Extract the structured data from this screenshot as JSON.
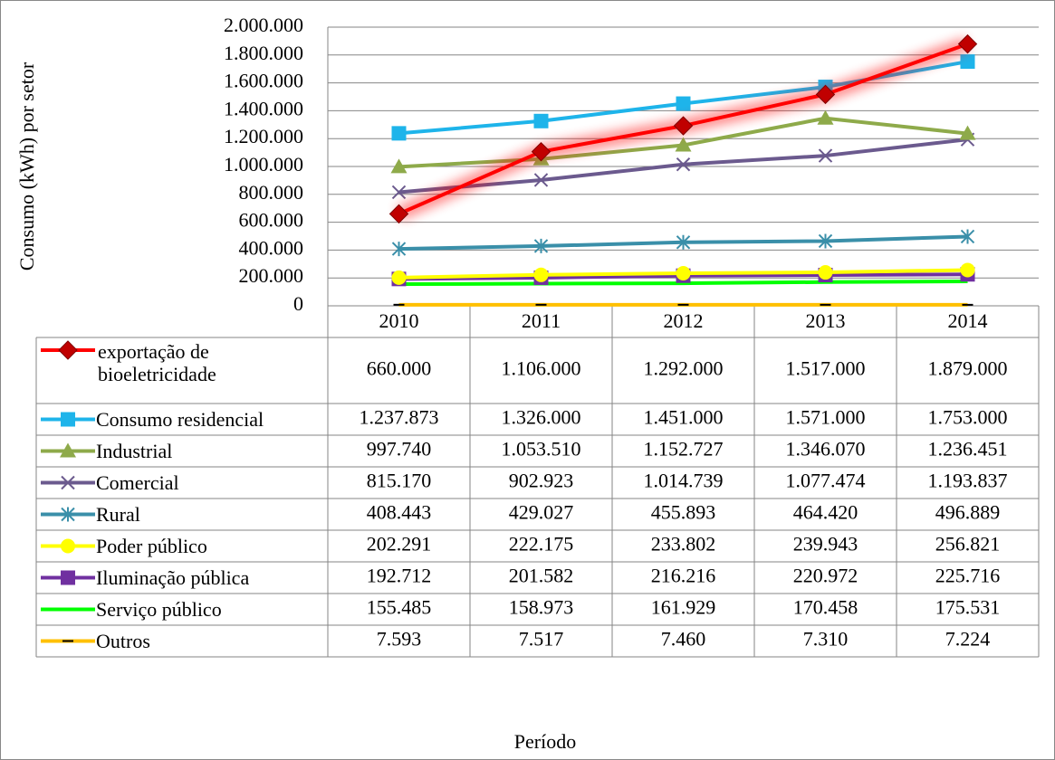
{
  "chart_data": {
    "type": "line",
    "y_axis_label": "Consumo (kWh) por  setor",
    "x_axis_label": "Período",
    "categories": [
      "2010",
      "2011",
      "2012",
      "2013",
      "2014"
    ],
    "ylim": [
      0,
      2000000
    ],
    "yticks": [
      0,
      {
        "value": 200000,
        "label": "200.000"
      },
      {
        "value": 400000,
        "label": "400.000"
      },
      {
        "value": 600000,
        "label": "600.000"
      },
      {
        "value": 800000,
        "label": "800.000"
      },
      {
        "value": 1000000,
        "label": "1.000.000"
      },
      {
        "value": 1200000,
        "label": "1.200.000"
      },
      {
        "value": 1400000,
        "label": "1.400.000"
      },
      {
        "value": 1600000,
        "label": "1.600.000"
      },
      {
        "value": 1800000,
        "label": "1.800.000"
      },
      {
        "value": 2000000,
        "label": "2.000.000"
      }
    ],
    "grid": true,
    "series": [
      {
        "name": "exportação de bioeletricidade",
        "color": "#ff0000",
        "marker": "diamond",
        "values": [
          660000,
          1106000,
          1292000,
          1517000,
          1879000
        ],
        "value_labels": [
          "660.000",
          "1.106.000",
          "1.292.000",
          "1.517.000",
          "1.879.000"
        ]
      },
      {
        "name": "Consumo residencial",
        "color": "#1eb4ea",
        "marker": "square",
        "values": [
          1237873,
          1326000,
          1451000,
          1571000,
          1753000
        ],
        "value_labels": [
          "1.237.873",
          "1.326.000",
          "1.451.000",
          "1.571.000",
          "1.753.000"
        ]
      },
      {
        "name": "Industrial",
        "color": "#8eaa4a",
        "marker": "triangle",
        "values": [
          997740,
          1053510,
          1152727,
          1346070,
          1236451
        ],
        "value_labels": [
          "997.740",
          "1.053.510",
          "1.152.727",
          "1.346.070",
          "1.236.451"
        ]
      },
      {
        "name": "Comercial",
        "color": "#6b5a8e",
        "marker": "x",
        "values": [
          815170,
          902923,
          1014739,
          1077474,
          1193837
        ],
        "value_labels": [
          "815.170",
          "902.923",
          "1.014.739",
          "1.077.474",
          "1.193.837"
        ]
      },
      {
        "name": "Rural",
        "color": "#3a8fa9",
        "marker": "star",
        "values": [
          408443,
          429027,
          455893,
          464420,
          496889
        ],
        "value_labels": [
          "408.443",
          "429.027",
          "455.893",
          "464.420",
          "496.889"
        ]
      },
      {
        "name": "Poder público",
        "color": "#ffff00",
        "marker": "circle",
        "values": [
          202291,
          222175,
          233802,
          239943,
          256821
        ],
        "value_labels": [
          "202.291",
          "222.175",
          "233.802",
          "239.943",
          "256.821"
        ]
      },
      {
        "name": "Iluminação pública",
        "color": "#7030a0",
        "marker": "square",
        "values": [
          192712,
          201582,
          216216,
          220972,
          225716
        ],
        "value_labels": [
          "192.712",
          "201.582",
          "216.216",
          "220.972",
          "225.716"
        ]
      },
      {
        "name": "Serviço público",
        "color": "#00ff00",
        "marker": "none",
        "values": [
          155485,
          158973,
          161929,
          170458,
          175531
        ],
        "value_labels": [
          "155.485",
          "158.973",
          "161.929",
          "170.458",
          "175.531"
        ]
      },
      {
        "name": "Outros",
        "color": "#ffc000",
        "marker": "dash",
        "values": [
          7593,
          7517,
          7460,
          7310,
          7224
        ],
        "value_labels": [
          "7.593",
          "7.517",
          "7.460",
          "7.310",
          "7.224"
        ]
      }
    ]
  }
}
